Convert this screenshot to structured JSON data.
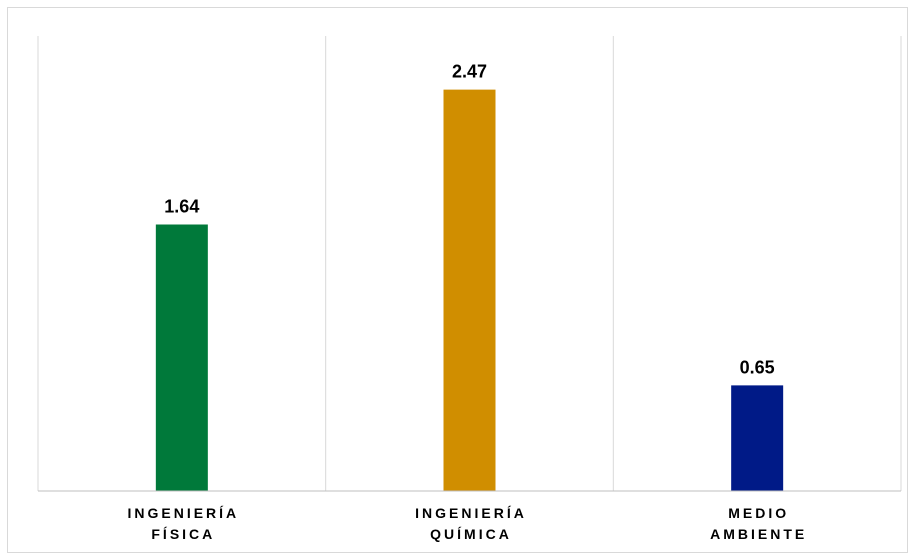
{
  "chart_data": {
    "type": "bar",
    "categories": [
      [
        "INGENIERÍA",
        "FÍSICA"
      ],
      [
        "INGENIERÍA",
        "QUÍMICA"
      ],
      [
        "MEDIO",
        "AMBIENTE"
      ]
    ],
    "values": [
      1.64,
      2.47,
      0.65
    ],
    "value_labels": [
      "1.64",
      "2.47",
      "0.65"
    ],
    "colors": [
      "#00793a",
      "#d08e00",
      "#001a87"
    ],
    "ylim": [
      0,
      2.8
    ],
    "grid": "vertical separators",
    "legend": "none"
  }
}
